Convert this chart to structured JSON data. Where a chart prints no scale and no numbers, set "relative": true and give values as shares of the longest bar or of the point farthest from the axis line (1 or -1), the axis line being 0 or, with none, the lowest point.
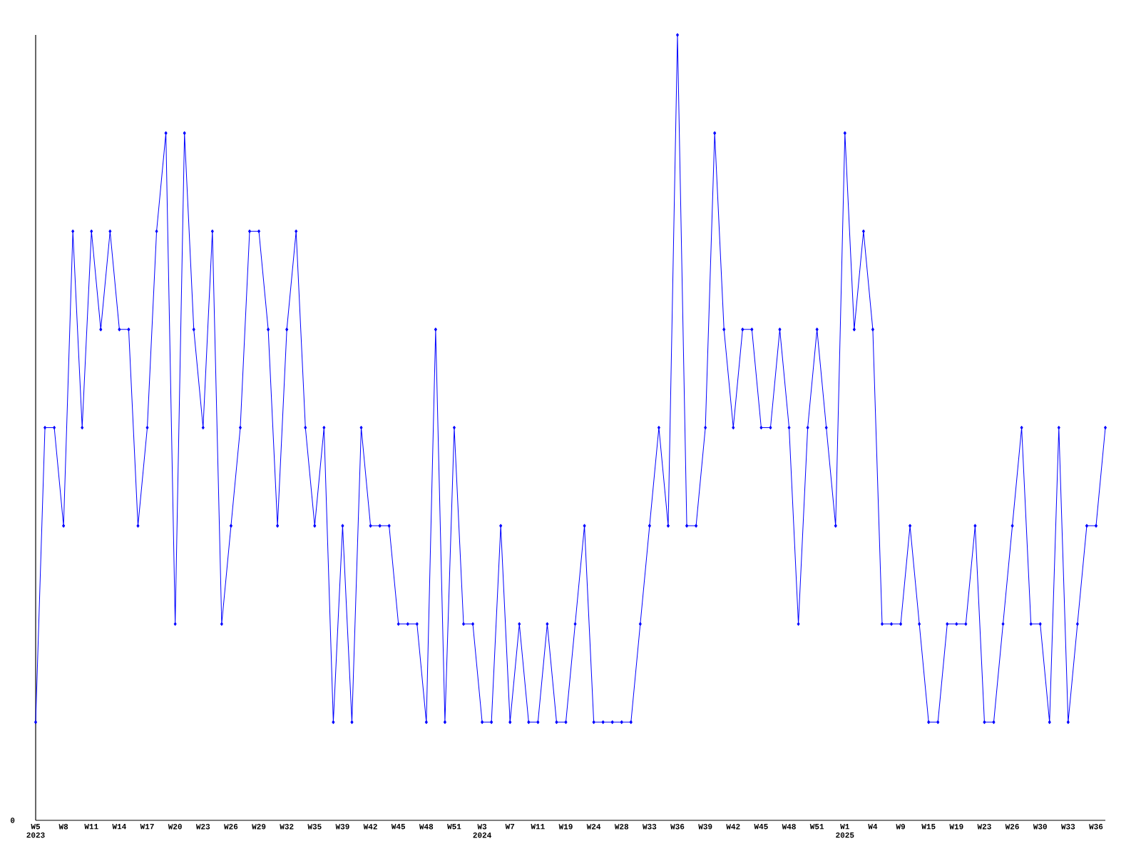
{
  "chart_data": {
    "type": "line",
    "relative": true,
    "color": "#0000ff",
    "marker": "diamond",
    "line_style": "solid",
    "grid": false,
    "categories": [
      "W5 2023",
      null,
      null,
      "W8",
      null,
      null,
      "W11",
      null,
      null,
      "W14",
      null,
      null,
      "W17",
      null,
      null,
      "W20",
      null,
      null,
      "W23",
      null,
      null,
      "W26",
      null,
      null,
      "W29",
      null,
      null,
      "W32",
      null,
      null,
      "W35",
      null,
      null,
      "W39",
      null,
      null,
      "W42",
      null,
      null,
      "W45",
      null,
      null,
      "W48",
      null,
      null,
      "W51",
      null,
      null,
      "W3 2024",
      null,
      null,
      "W7",
      null,
      null,
      "W11",
      null,
      null,
      "W19",
      null,
      null,
      "W24",
      null,
      null,
      "W28",
      null,
      null,
      "W33",
      null,
      null,
      "W36",
      null,
      null,
      "W39",
      null,
      null,
      "W42",
      null,
      null,
      "W45",
      null,
      null,
      "W48",
      null,
      null,
      "W51",
      null,
      null,
      "W1 2025",
      null,
      null,
      "W4",
      null,
      null,
      "W9",
      null,
      null,
      "W15",
      null,
      null,
      "W19",
      null,
      null,
      "W23",
      null,
      null,
      "W26",
      null,
      null,
      "W30",
      null,
      null,
      "W33",
      null,
      null,
      "W36",
      null
    ],
    "values": [
      0.125,
      0.5,
      0.5,
      0.375,
      0.75,
      0.5,
      0.75,
      0.625,
      0.75,
      0.625,
      0.625,
      0.375,
      0.5,
      0.75,
      0.875,
      0.25,
      0.875,
      0.625,
      0.5,
      0.75,
      0.25,
      0.375,
      0.5,
      0.75,
      0.75,
      0.625,
      0.375,
      0.625,
      0.75,
      0.5,
      0.375,
      0.5,
      0.125,
      0.375,
      0.125,
      0.5,
      0.375,
      0.375,
      0.375,
      0.25,
      0.25,
      0.25,
      0.125,
      0.625,
      0.125,
      0.5,
      0.25,
      0.25,
      0.125,
      0.125,
      0.375,
      0.125,
      0.25,
      0.125,
      0.125,
      0.25,
      0.125,
      0.125,
      0.25,
      0.375,
      0.125,
      0.125,
      0.125,
      0.125,
      0.125,
      0.25,
      0.375,
      0.5,
      0.375,
      1,
      0.375,
      0.375,
      0.5,
      0.875,
      0.625,
      0.5,
      0.625,
      0.625,
      0.5,
      0.5,
      0.625,
      0.5,
      0.25,
      0.5,
      0.625,
      0.5,
      0.375,
      0.875,
      0.625,
      0.75,
      0.625,
      0.25,
      0.25,
      0.25,
      0.375,
      0.25,
      0.125,
      0.125,
      0.25,
      0.25,
      0.25,
      0.375,
      0.125,
      0.125,
      0.25,
      0.375,
      0.5,
      0.25,
      0.25,
      0.125,
      0.5,
      0.125,
      0.25,
      0.375,
      0.375,
      0.5
    ],
    "annotations": [
      "0"
    ]
  }
}
